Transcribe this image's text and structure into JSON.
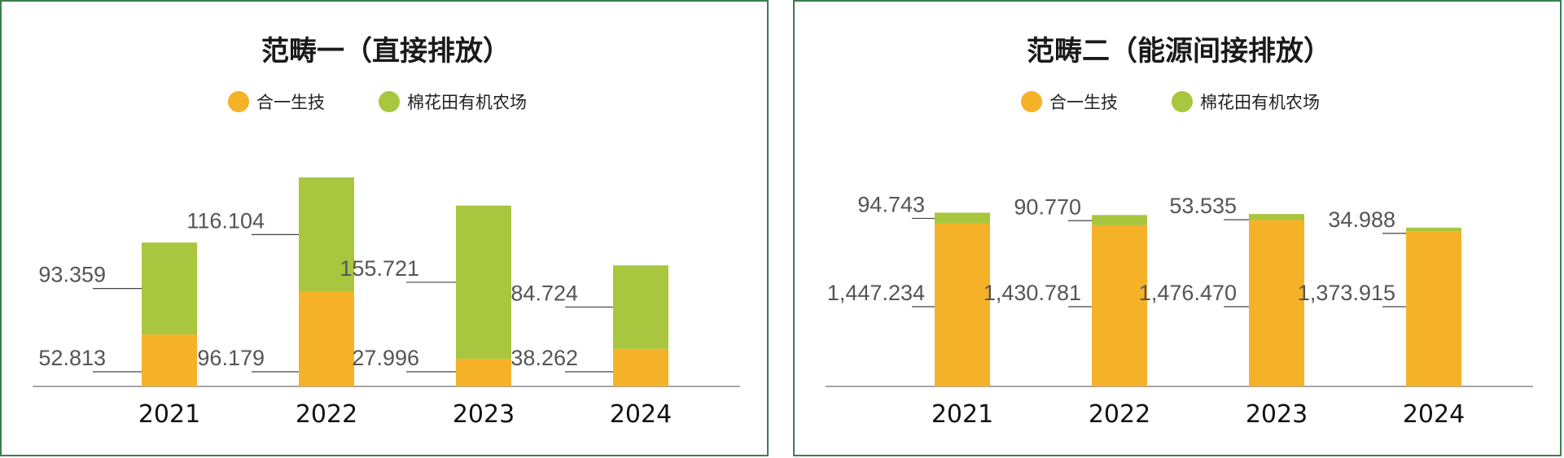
{
  "colors": {
    "series1": "#f5b229",
    "series2": "#a8c63e",
    "border": "#3d7d52",
    "axis": "#888888"
  },
  "chart_data": [
    {
      "type": "bar",
      "stacked": true,
      "title": "范畴一（直接排放）",
      "legend": {
        "placement": "top-center"
      },
      "categories": [
        "2021",
        "2022",
        "2023",
        "2024"
      ],
      "series": [
        {
          "name": "合一生技",
          "values": [
            52.813,
            96.179,
            27.996,
            38.262
          ],
          "labels": [
            "52.813",
            "96.179",
            "27.996",
            "38.262"
          ]
        },
        {
          "name": "棉花田有机农场",
          "values": [
            93.359,
            116.104,
            155.721,
            84.724
          ],
          "labels": [
            "93.359",
            "116.104",
            "155.721",
            "84.724"
          ]
        }
      ]
    },
    {
      "type": "bar",
      "stacked": true,
      "title": "范畴二（能源间接排放）",
      "legend": {
        "placement": "top-center"
      },
      "categories": [
        "2021",
        "2022",
        "2023",
        "2024"
      ],
      "series": [
        {
          "name": "合一生技",
          "values": [
            1447.234,
            1430.781,
            1476.47,
            1373.915
          ],
          "labels": [
            "1,447.234",
            "1,430.781",
            "1,476.470",
            "1,373.915"
          ]
        },
        {
          "name": "棉花田有机农场",
          "values": [
            94.743,
            90.77,
            53.535,
            34.988
          ],
          "labels": [
            "94.743",
            "90.770",
            "53.535",
            "34.988"
          ]
        }
      ]
    }
  ]
}
